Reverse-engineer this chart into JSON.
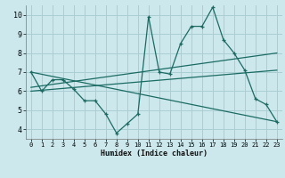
{
  "background_color": "#cce8ec",
  "grid_color": "#aacdd4",
  "line_color": "#1a6b63",
  "xlim": [
    -0.5,
    23.5
  ],
  "ylim": [
    3.5,
    10.5
  ],
  "xticks": [
    0,
    1,
    2,
    3,
    4,
    5,
    6,
    7,
    8,
    9,
    10,
    11,
    12,
    13,
    14,
    15,
    16,
    17,
    18,
    19,
    20,
    21,
    22,
    23
  ],
  "yticks": [
    4,
    5,
    6,
    7,
    8,
    9,
    10
  ],
  "xlabel": "Humidex (Indice chaleur)",
  "zigzag_x": [
    0,
    1,
    2,
    3,
    4,
    5,
    6,
    7,
    8,
    9,
    10,
    11,
    12,
    13,
    14,
    15,
    16,
    17,
    18,
    19,
    20,
    21,
    22,
    23
  ],
  "zigzag_y": [
    7.0,
    6.0,
    6.6,
    6.6,
    6.1,
    5.5,
    5.5,
    4.8,
    3.8,
    4.3,
    4.8,
    9.9,
    7.0,
    6.9,
    8.5,
    9.4,
    9.4,
    10.4,
    8.7,
    8.0,
    7.1,
    5.6,
    5.3,
    4.4
  ],
  "line1_x": [
    0,
    23
  ],
  "line1_y": [
    7.0,
    4.4
  ],
  "line2_x": [
    0,
    23
  ],
  "line2_y": [
    6.2,
    8.0
  ],
  "line3_x": [
    0,
    23
  ],
  "line3_y": [
    6.0,
    7.1
  ]
}
